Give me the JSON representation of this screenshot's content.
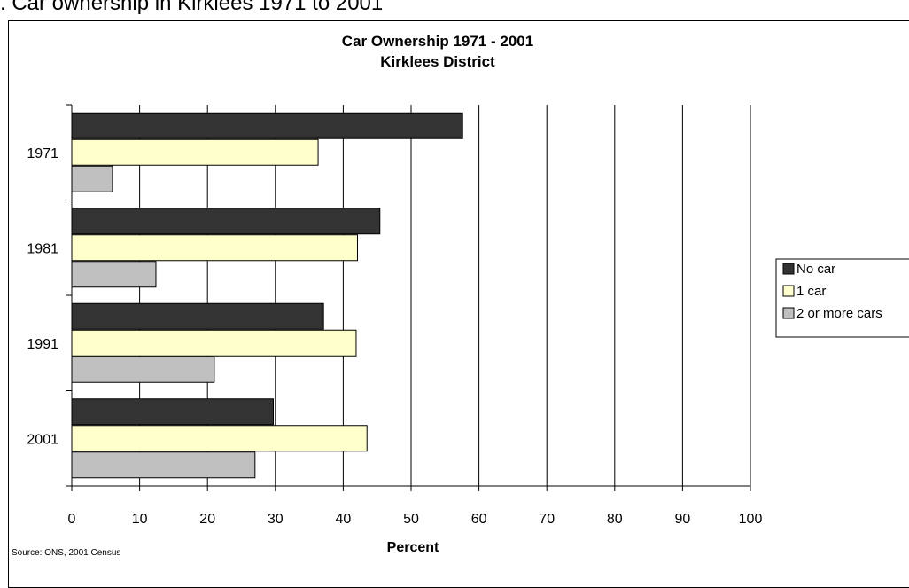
{
  "page": {
    "heading": ". Car ownership in Kirklees 1971 to 2001",
    "source": "Source: ONS, 2001 Census"
  },
  "chart_data": {
    "type": "bar",
    "orientation": "horizontal",
    "title": [
      "Car Ownership 1971 - 2001",
      "Kirklees District"
    ],
    "xlabel": "Percent",
    "ylabel": "",
    "categories": [
      "1971",
      "1981",
      "1991",
      "2001"
    ],
    "series": [
      {
        "name": "No car",
        "color": "#333333",
        "values": [
          57.6,
          45.4,
          37.1,
          29.7
        ]
      },
      {
        "name": "1 car",
        "color": "#ffffcc",
        "values": [
          36.3,
          42.1,
          41.9,
          43.5
        ]
      },
      {
        "name": "2 or more cars",
        "color": "#c0c0c0",
        "values": [
          6.0,
          12.4,
          21.0,
          27.0
        ]
      }
    ],
    "xlim": [
      0,
      100
    ],
    "xticks": [
      "0",
      "10",
      "20",
      "30",
      "40",
      "50",
      "60",
      "70",
      "80",
      "90",
      "100"
    ],
    "grid": "vertical",
    "legend": "right"
  }
}
